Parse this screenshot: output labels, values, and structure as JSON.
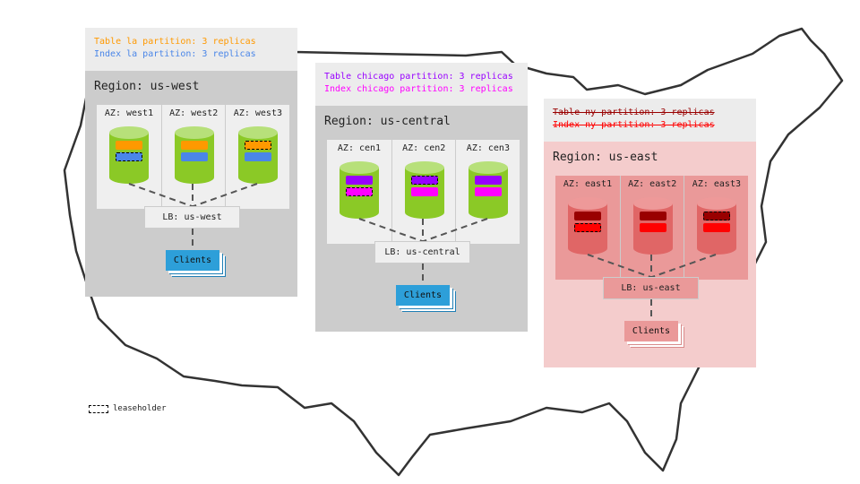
{
  "colors": {
    "leaseholder_border": "#000000"
  },
  "regions": [
    {
      "id": "west",
      "title": "Region: us-west",
      "header_lines": [
        {
          "text": "Table la partition: 3 replicas",
          "color": "#ff9900",
          "struck": false
        },
        {
          "text": "Index la partition: 3 replicas",
          "color": "#4a86e8",
          "struck": false
        }
      ],
      "body_bg": "#cccccc",
      "az_bg": "#efefef",
      "cyl_body": "#8bc926",
      "cyl_top": "#b7e07a",
      "table_color": "#ff9900",
      "index_color": "#4a86e8",
      "azs": [
        {
          "label": "AZ: west1",
          "leaseholder": "index"
        },
        {
          "label": "AZ: west2",
          "leaseholder": "none"
        },
        {
          "label": "AZ: west3",
          "leaseholder": "table"
        }
      ],
      "lb": "LB: us-west",
      "lb_bg": "#efefef",
      "clients": "Clients",
      "clients_bg": "#2d9fd9",
      "clients_edge": "#1f7fb5"
    },
    {
      "id": "central",
      "title": "Region: us-central",
      "header_lines": [
        {
          "text": "Table chicago partition: 3 replicas",
          "color": "#9900ff",
          "struck": false
        },
        {
          "text": "Index chicago partition: 3 replicas",
          "color": "#ff00ff",
          "struck": false
        }
      ],
      "body_bg": "#cccccc",
      "az_bg": "#efefef",
      "cyl_body": "#8bc926",
      "cyl_top": "#b7e07a",
      "table_color": "#9900ff",
      "index_color": "#ff00ff",
      "azs": [
        {
          "label": "AZ: cen1",
          "leaseholder": "index"
        },
        {
          "label": "AZ: cen2",
          "leaseholder": "table"
        },
        {
          "label": "AZ: cen3",
          "leaseholder": "none"
        }
      ],
      "lb": "LB: us-central",
      "lb_bg": "#efefef",
      "clients": "Clients",
      "clients_bg": "#2d9fd9",
      "clients_edge": "#1f7fb5"
    },
    {
      "id": "east",
      "title": "Region: us-east",
      "header_lines": [
        {
          "text": "Table ny partition: 3 replicas",
          "color": "#990000",
          "struck": true
        },
        {
          "text": "Index ny partition: 3 replicas",
          "color": "#ff0000",
          "struck": true
        }
      ],
      "body_bg": "#f4cccc",
      "az_bg": "#ea9999",
      "cyl_body": "#e06666",
      "cyl_top": "#ee9999",
      "table_color": "#990000",
      "index_color": "#ff0000",
      "azs": [
        {
          "label": "AZ: east1",
          "leaseholder": "index"
        },
        {
          "label": "AZ: east2",
          "leaseholder": "none"
        },
        {
          "label": "AZ: east3",
          "leaseholder": "table"
        }
      ],
      "lb": "LB: us-east",
      "lb_bg": "#ea9999",
      "clients": "Clients",
      "clients_bg": "#ea9999",
      "clients_edge": "#d88a8a"
    }
  ],
  "legend": {
    "label": "leaseholder"
  }
}
